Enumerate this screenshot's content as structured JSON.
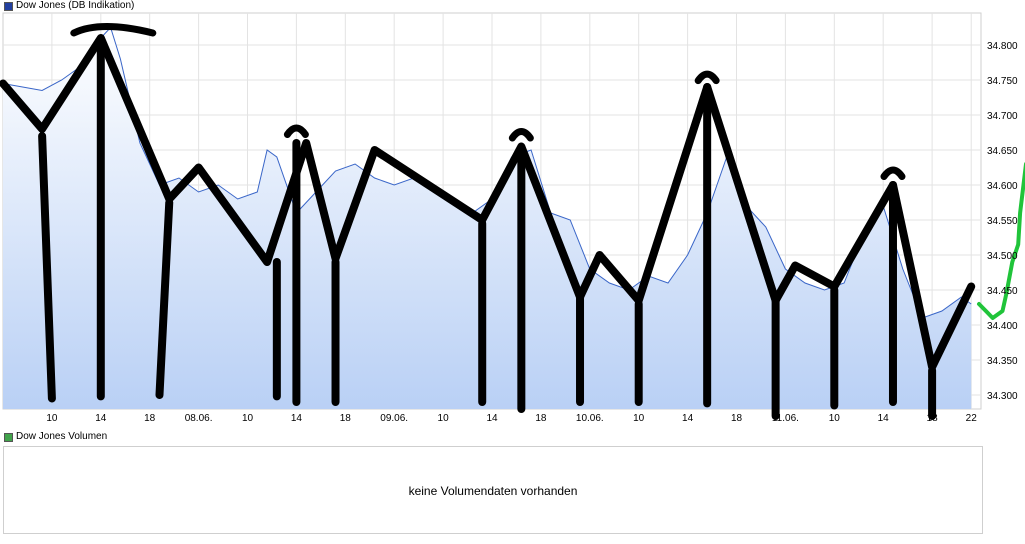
{
  "chart_data": {
    "type": "area",
    "title": "Dow Jones (DB Indikation)",
    "y_ticks": [
      34300,
      34350,
      34400,
      34450,
      34500,
      34550,
      34600,
      34650,
      34700,
      34750,
      34800
    ],
    "y_tick_labels": [
      "34.300",
      "34.350",
      "34.400",
      "34.450",
      "34.500",
      "34.550",
      "34.600",
      "34.650",
      "34.700",
      "34.750",
      "34.800"
    ],
    "ylim": [
      34280,
      34840
    ],
    "x_tick_labels": [
      "10",
      "14",
      "18",
      "08.06.",
      "10",
      "14",
      "18",
      "09.06.",
      "10",
      "14",
      "18",
      "10.06.",
      "10",
      "14",
      "18",
      "11.06.",
      "10",
      "14",
      "18",
      "22"
    ],
    "x_index_range": [
      0,
      99
    ],
    "x_tick_positions": [
      5,
      10,
      15,
      20,
      25,
      30,
      35,
      40,
      45,
      50,
      55,
      60,
      65,
      70,
      75,
      80,
      85,
      90,
      95,
      99
    ],
    "grid": true,
    "series": [
      {
        "name": "Dow Jones (DB Indikation)",
        "color": "#3a66c8",
        "x": [
          0,
          2,
          4,
          6,
          8,
          10,
          11,
          12,
          14,
          16,
          18,
          20,
          22,
          24,
          26,
          27,
          28,
          30,
          32,
          34,
          36,
          38,
          40,
          42,
          44,
          46,
          48,
          50,
          52,
          54,
          56,
          58,
          60,
          62,
          64,
          66,
          68,
          70,
          72,
          74,
          76,
          78,
          80,
          82,
          84,
          86,
          88,
          90,
          92,
          94,
          96,
          98,
          99
        ],
        "values": [
          34745,
          34740,
          34735,
          34750,
          34770,
          34810,
          34825,
          34780,
          34660,
          34600,
          34610,
          34590,
          34600,
          34580,
          34590,
          34650,
          34640,
          34560,
          34590,
          34620,
          34630,
          34610,
          34600,
          34610,
          34590,
          34580,
          34560,
          34580,
          34640,
          34650,
          34560,
          34550,
          34480,
          34460,
          34450,
          34470,
          34460,
          34500,
          34560,
          34640,
          34570,
          34540,
          34480,
          34460,
          34450,
          34460,
          34530,
          34570,
          34480,
          34410,
          34420,
          34440,
          34430
        ]
      }
    ],
    "annotation_strokes": [
      {
        "color": "#000000",
        "points": [
          [
            0,
            34745
          ],
          [
            4,
            34680
          ],
          [
            10,
            34810
          ],
          [
            17,
            34580
          ],
          [
            20,
            34625
          ],
          [
            27,
            34490
          ],
          [
            31,
            34660
          ],
          [
            34,
            34495
          ],
          [
            38,
            34650
          ],
          [
            49,
            34550
          ],
          [
            53,
            34655
          ],
          [
            59,
            34440
          ],
          [
            61,
            34500
          ],
          [
            65,
            34435
          ],
          [
            72,
            34740
          ],
          [
            79,
            34435
          ],
          [
            81,
            34485
          ],
          [
            85,
            34455
          ],
          [
            91,
            34600
          ],
          [
            95,
            34340
          ],
          [
            99,
            34455
          ]
        ]
      },
      {
        "color": "#000000",
        "points": [
          [
            4,
            34670
          ],
          [
            5,
            34295
          ],
          [
            10,
            34805
          ],
          [
            10,
            34298
          ],
          [
            17,
            34575
          ],
          [
            16,
            34300
          ],
          [
            28,
            34490
          ],
          [
            28,
            34298
          ],
          [
            30,
            34660
          ],
          [
            30,
            34290
          ],
          [
            34,
            34490
          ],
          [
            34,
            34290
          ],
          [
            49,
            34545
          ],
          [
            49,
            34290
          ],
          [
            53,
            34650
          ],
          [
            53,
            34280
          ],
          [
            59,
            34440
          ],
          [
            59,
            34290
          ],
          [
            65,
            34430
          ],
          [
            65,
            34290
          ],
          [
            72,
            34740
          ],
          [
            72,
            34288
          ],
          [
            79,
            34440
          ],
          [
            79,
            34270
          ],
          [
            85,
            34450
          ],
          [
            85,
            34285
          ],
          [
            91,
            34600
          ],
          [
            91,
            34290
          ],
          [
            95,
            34335
          ],
          [
            95,
            34270
          ]
        ]
      },
      {
        "color": "#20c43a",
        "points": [
          [
            99.8,
            34430
          ],
          [
            100.5,
            34420
          ],
          [
            101.2,
            34410
          ],
          [
            102.2,
            34420
          ],
          [
            102.6,
            34445
          ],
          [
            103.2,
            34490
          ],
          [
            103.8,
            34515
          ],
          [
            104.0,
            34560
          ],
          [
            104.6,
            34630
          ]
        ]
      }
    ]
  },
  "volume_panel": {
    "title": "Dow Jones Volumen",
    "legend_color": "#41a34b",
    "message": "keine Volumendaten vorhanden"
  },
  "price_legend_color": "#2340a0"
}
